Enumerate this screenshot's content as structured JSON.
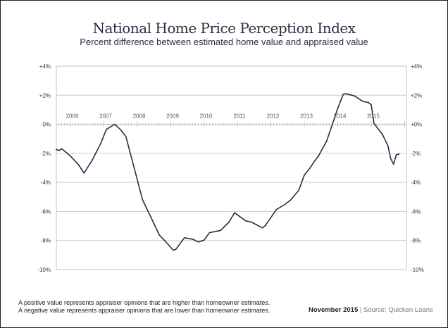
{
  "chart_data": {
    "type": "line",
    "title": "National Home Price Perception Index",
    "subtitle": "Percent difference between estimated home value and appraised value",
    "xlabel": "",
    "ylabel": "",
    "ylim": [
      -10,
      4
    ],
    "yticks_left": [
      "+4%",
      "+2%",
      "0%",
      "-2%",
      "-4%",
      "-6%",
      "-8%",
      "-10%"
    ],
    "yticks_right": [
      "+4%",
      "+2%",
      "+0%",
      "-2%",
      "-4%",
      "-6%",
      "-8%",
      "-10%"
    ],
    "ytick_values": [
      4,
      2,
      0,
      -2,
      -4,
      -6,
      -8,
      -10
    ],
    "xticks": [
      "2006",
      "2007",
      "2008",
      "2009",
      "2010",
      "2011",
      "2012",
      "2013",
      "2014",
      "2015"
    ],
    "grid": true,
    "line_color": "#2a2d45",
    "series": [
      {
        "x": [
          "2005-08",
          "2005-09",
          "2005-10",
          "2006-01",
          "2006-04",
          "2006-06",
          "2006-09",
          "2006-12",
          "2007-02",
          "2007-05",
          "2007-07",
          "2007-09",
          "2007-11",
          "2008-03",
          "2008-07",
          "2008-09",
          "2008-11",
          "2009-02",
          "2009-03",
          "2009-06",
          "2009-09",
          "2009-11",
          "2010-01",
          "2010-03",
          "2010-07",
          "2010-10",
          "2010-12",
          "2011-04",
          "2011-06",
          "2011-10",
          "2011-11",
          "2012-03",
          "2012-06",
          "2012-08",
          "2012-11",
          "2013-01",
          "2013-03",
          "2013-05",
          "2013-06",
          "2013-09",
          "2013-11",
          "2014-01",
          "2014-03",
          "2014-04",
          "2014-07",
          "2014-10",
          "2014-12",
          "2015-01",
          "2015-02",
          "2015-05",
          "2015-07",
          "2015-08",
          "2015-09",
          "2015-10",
          "2015-11"
        ],
        "values": [
          -1.73,
          -1.81,
          -1.68,
          -2.16,
          -2.78,
          -3.36,
          -2.45,
          -1.32,
          -0.35,
          0.0,
          -0.35,
          -0.84,
          -2.29,
          -5.2,
          -6.81,
          -7.62,
          -8.02,
          -8.67,
          -8.59,
          -7.81,
          -7.91,
          -8.1,
          -7.98,
          -7.46,
          -7.3,
          -6.73,
          -6.09,
          -6.65,
          -6.73,
          -7.13,
          -6.97,
          -5.87,
          -5.52,
          -5.23,
          -4.55,
          -3.5,
          -3.02,
          -2.45,
          -2.21,
          -1.16,
          -0.03,
          1.1,
          2.07,
          2.1,
          1.95,
          1.58,
          1.5,
          1.34,
          0.05,
          -0.68,
          -1.49,
          -2.37,
          -2.75,
          -2.1,
          -2.05
        ]
      }
    ]
  },
  "footer": {
    "note_positive": "A positive value represents appraiser opinions that are higher than homeowner estimates.",
    "note_negative": "A negative value represents appraiser opinions that are lower than homeowner estimates.",
    "date": "November 2015",
    "separator": "|",
    "source": "Source: Quicken Loans"
  }
}
